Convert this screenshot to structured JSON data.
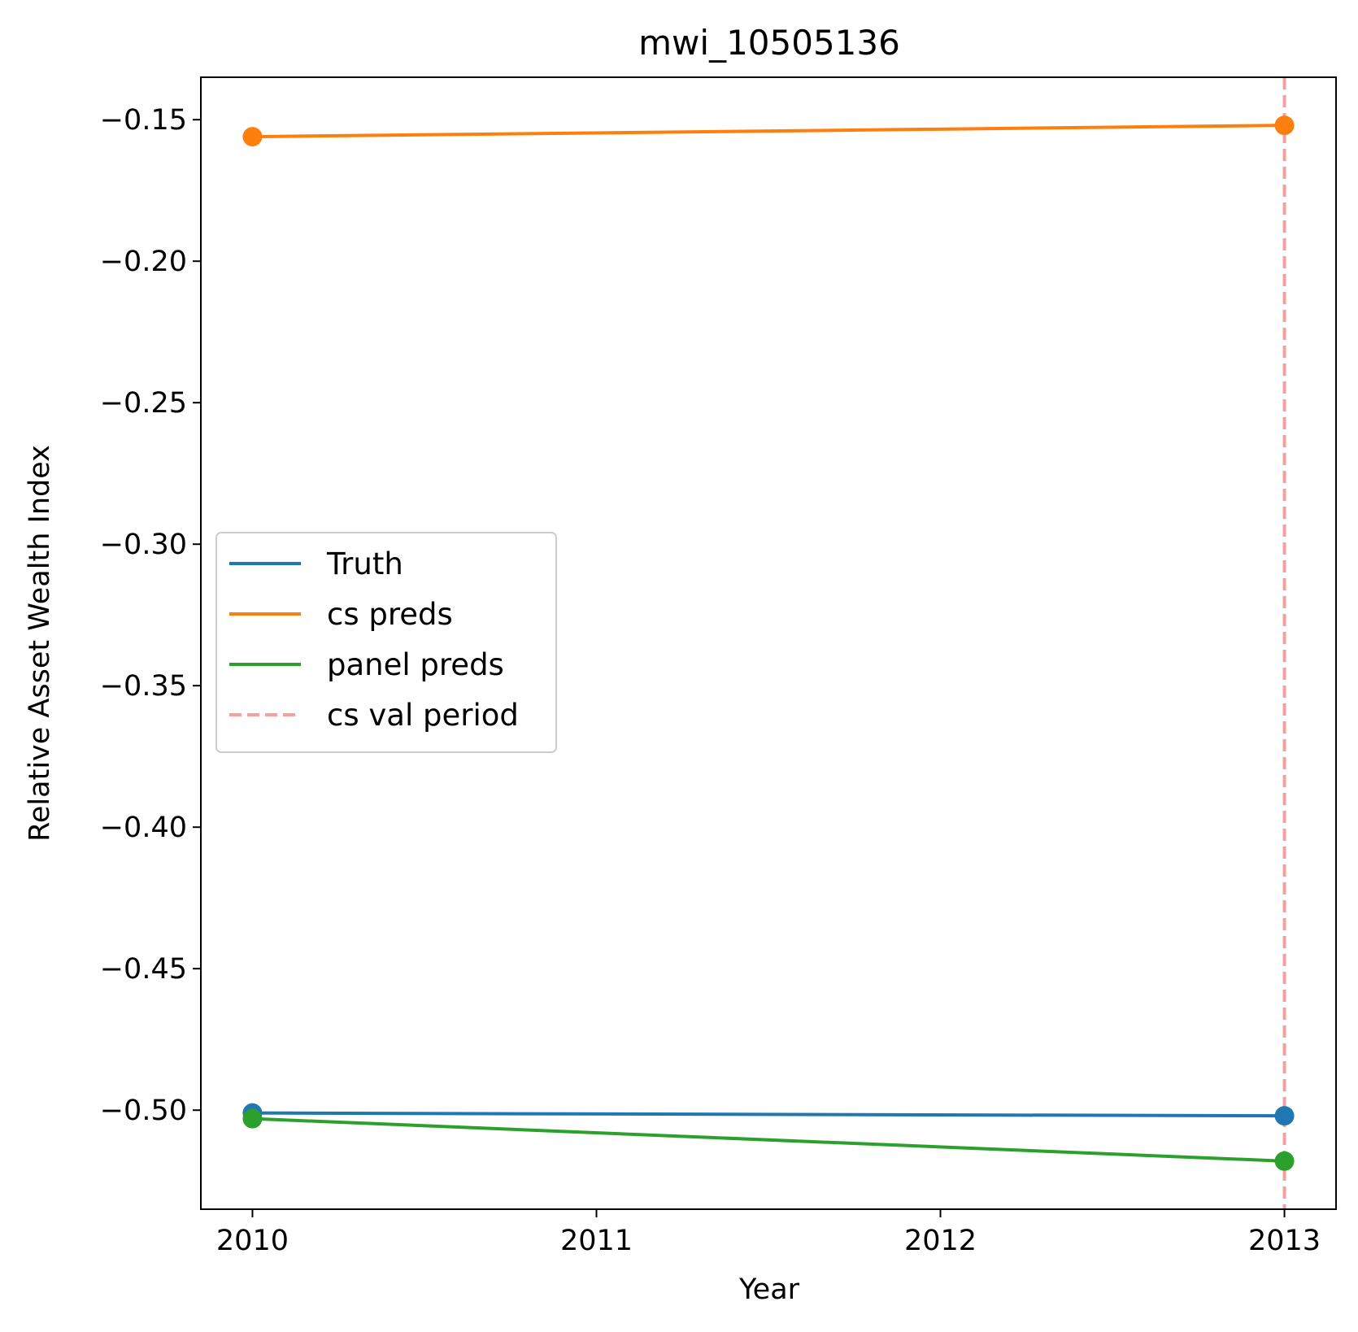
{
  "chart_data": {
    "type": "line",
    "title": "mwi_10505136",
    "xlabel": "Year",
    "ylabel": "Relative Asset Wealth Index",
    "x": [
      2010,
      2013
    ],
    "xticks": [
      2010,
      2011,
      2012,
      2013
    ],
    "xtick_labels": [
      "2010",
      "2011",
      "2012",
      "2013"
    ],
    "xlim": [
      2009.85,
      2013.15
    ],
    "yticks": [
      -0.15,
      -0.2,
      -0.25,
      -0.3,
      -0.35,
      -0.4,
      -0.45,
      -0.5
    ],
    "ytick_labels": [
      "−0.15",
      "−0.20",
      "−0.25",
      "−0.30",
      "−0.35",
      "−0.40",
      "−0.45",
      "−0.50"
    ],
    "ylim": [
      -0.535,
      -0.135
    ],
    "grid": false,
    "legend_position": "center-left",
    "series": [
      {
        "name": "Truth",
        "values": [
          -0.501,
          -0.502
        ],
        "color": "#1f77b4",
        "marker": true,
        "dashed": false
      },
      {
        "name": "cs preds",
        "values": [
          -0.156,
          -0.152
        ],
        "color": "#ff7f0e",
        "marker": true,
        "dashed": false
      },
      {
        "name": "panel preds",
        "values": [
          -0.503,
          -0.518
        ],
        "color": "#2ca02c",
        "marker": true,
        "dashed": false
      }
    ],
    "vline": {
      "name": "cs val period",
      "x": 2013,
      "color": "#f4a0a0",
      "dashed": true
    },
    "legend": [
      {
        "label": "Truth",
        "color": "#1f77b4",
        "dashed": false
      },
      {
        "label": "cs preds",
        "color": "#ff7f0e",
        "dashed": false
      },
      {
        "label": "panel preds",
        "color": "#2ca02c",
        "dashed": false
      },
      {
        "label": "cs val period",
        "color": "#f4a0a0",
        "dashed": true
      }
    ]
  }
}
